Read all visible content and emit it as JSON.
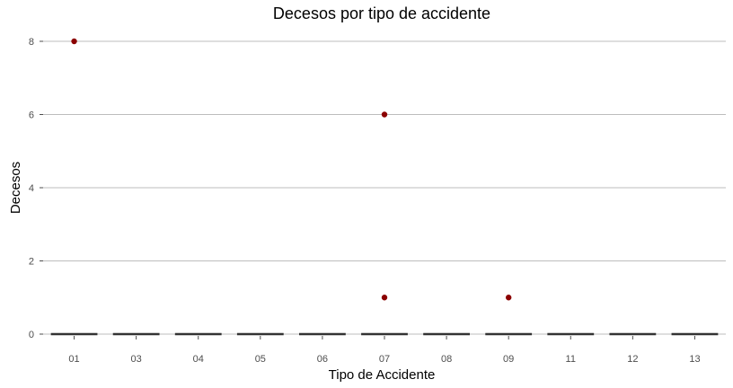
{
  "chart_data": {
    "type": "box",
    "title": "Decesos por tipo de accidente",
    "xlabel": "Tipo de Accidente",
    "ylabel": "Decesos",
    "categories": [
      "01",
      "03",
      "04",
      "05",
      "06",
      "07",
      "08",
      "09",
      "11",
      "12",
      "13"
    ],
    "medians": [
      0,
      0,
      0,
      0,
      0,
      0,
      0,
      0,
      0,
      0,
      0
    ],
    "outliers": [
      {
        "category": "01",
        "value": 8
      },
      {
        "category": "07",
        "value": 6
      },
      {
        "category": "07",
        "value": 1
      },
      {
        "category": "09",
        "value": 1
      }
    ],
    "ylim": [
      0,
      8
    ],
    "yticks": [
      0,
      2,
      4,
      6,
      8
    ],
    "grid": "horizontal major",
    "outlier_color": "#8b0000",
    "box_color": "#333333"
  }
}
